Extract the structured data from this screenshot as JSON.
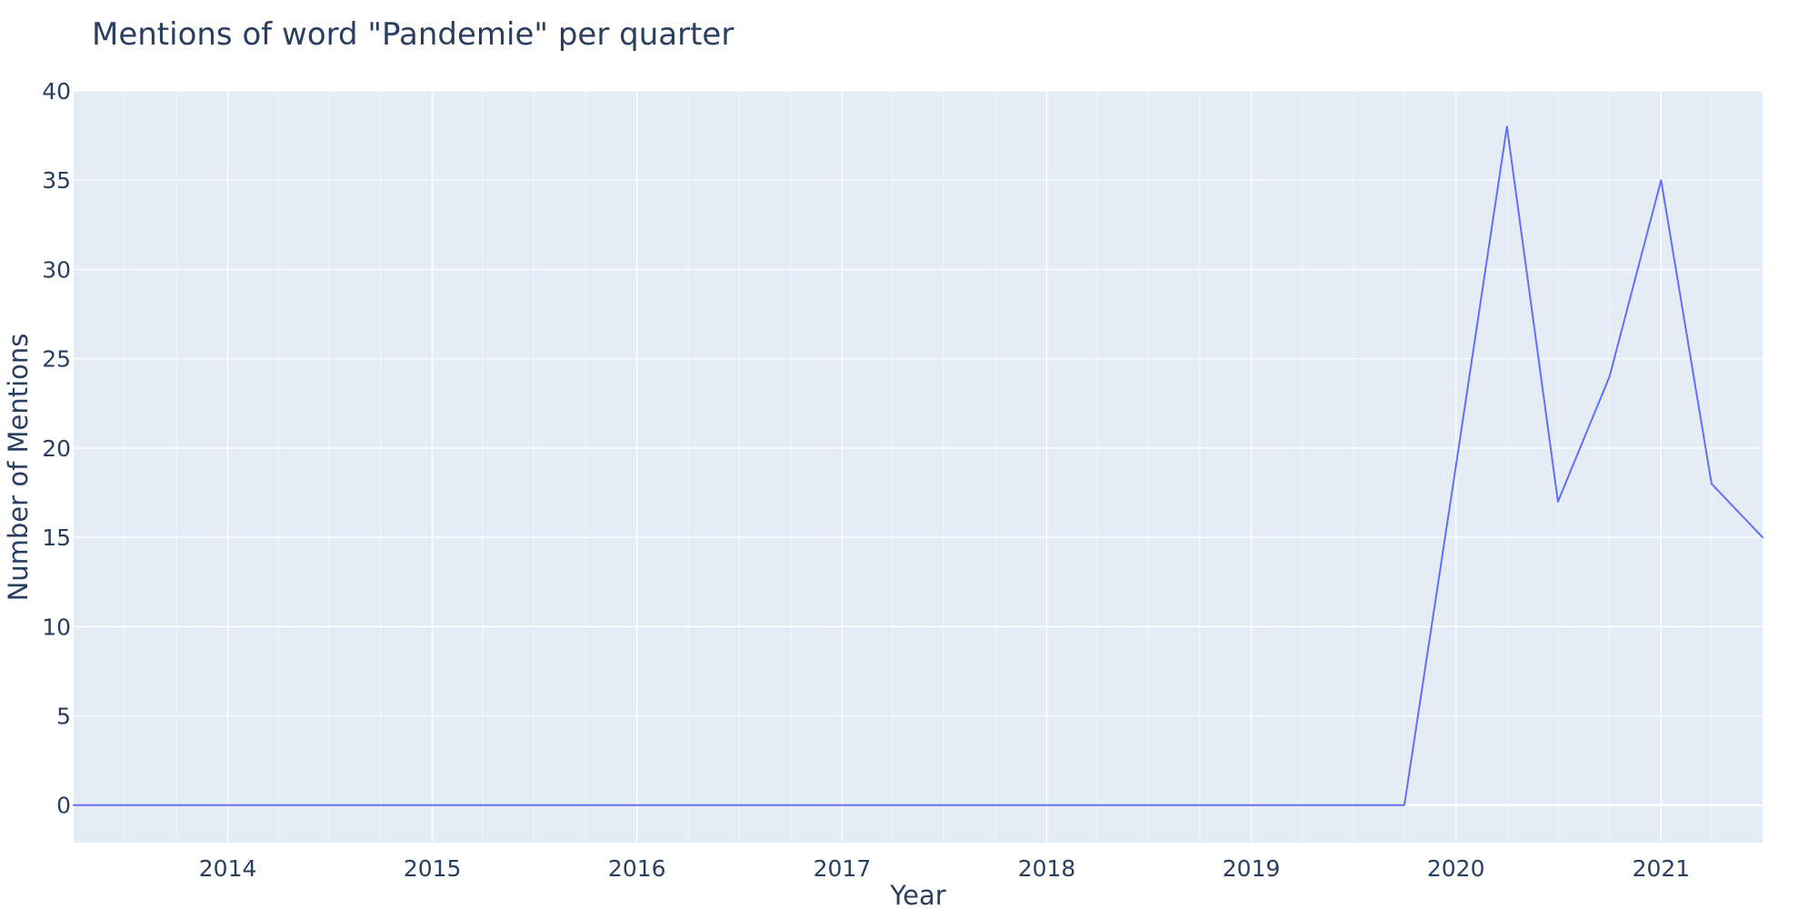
{
  "chart_data": {
    "type": "line",
    "title": "Mentions of word \"Pandemie\" per quarter",
    "xlabel": "Year",
    "ylabel": "Number of Mentions",
    "x": [
      "2013-04-01",
      "2013-07-01",
      "2013-10-01",
      "2014-01-01",
      "2014-04-01",
      "2014-07-01",
      "2014-10-01",
      "2015-01-01",
      "2015-04-01",
      "2015-07-01",
      "2015-10-01",
      "2016-01-01",
      "2016-04-01",
      "2016-07-01",
      "2016-10-01",
      "2017-01-01",
      "2017-04-01",
      "2017-07-01",
      "2017-10-01",
      "2018-01-01",
      "2018-04-01",
      "2018-07-01",
      "2018-10-01",
      "2019-01-01",
      "2019-04-01",
      "2019-07-01",
      "2019-10-01",
      "2020-01-01",
      "2020-04-01",
      "2020-07-01",
      "2020-10-01",
      "2021-01-01",
      "2021-04-01",
      "2021-07-01"
    ],
    "series": [
      {
        "values": [
          0,
          0,
          0,
          0,
          0,
          0,
          0,
          0,
          0,
          0,
          0,
          0,
          0,
          0,
          0,
          0,
          0,
          0,
          0,
          0,
          0,
          0,
          0,
          0,
          0,
          0,
          0,
          19,
          38,
          17,
          24,
          35,
          18,
          15
        ]
      }
    ],
    "xlim": [
      "2013-04-01",
      "2021-07-01"
    ],
    "ylim": [
      -2.1,
      40
    ],
    "x_ticks": [
      {
        "value": "2014-01-01",
        "label": "2014"
      },
      {
        "value": "2015-01-01",
        "label": "2015"
      },
      {
        "value": "2016-01-01",
        "label": "2016"
      },
      {
        "value": "2017-01-01",
        "label": "2017"
      },
      {
        "value": "2018-01-01",
        "label": "2018"
      },
      {
        "value": "2019-01-01",
        "label": "2019"
      },
      {
        "value": "2020-01-01",
        "label": "2020"
      },
      {
        "value": "2021-01-01",
        "label": "2021"
      }
    ],
    "y_ticks": [
      {
        "value": 0,
        "label": "0"
      },
      {
        "value": 5,
        "label": "5"
      },
      {
        "value": 10,
        "label": "10"
      },
      {
        "value": 15,
        "label": "15"
      },
      {
        "value": 20,
        "label": "20"
      },
      {
        "value": 25,
        "label": "25"
      },
      {
        "value": 30,
        "label": "30"
      },
      {
        "value": 35,
        "label": "35"
      },
      {
        "value": 40,
        "label": "40"
      }
    ],
    "grid": true,
    "minor_grid": "quarterly",
    "colors": {
      "line": "#636efa",
      "plot_background": "#e5ecf6",
      "grid": "#ffffff",
      "text": "#2a3f5f"
    }
  }
}
